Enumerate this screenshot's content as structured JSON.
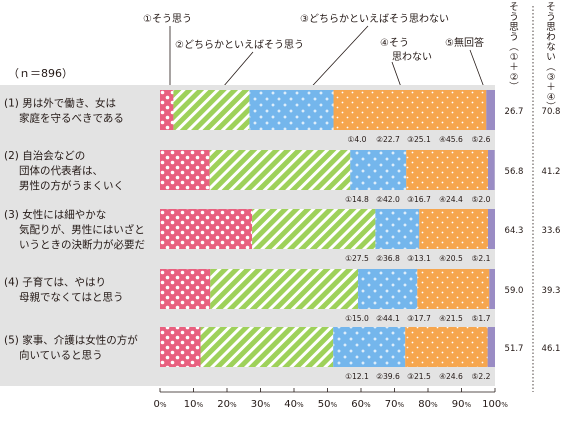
{
  "chart_data": {
    "type": "bar",
    "orientation": "horizontal",
    "stacked": true,
    "sample": "（ｎ＝896）",
    "categories": [
      "(1) 男は外で働き、女は家庭を守るべきである",
      "(2) 自治会などの団体の代表者は、男性の方がうまくいく",
      "(3) 女性には細やかな気配りが、男性にはいざというときの決断力が必要だ",
      "(4) 子育ては、やはり母親でなくてはと思う",
      "(5) 家事、介護は女性の方が向いていると思う"
    ],
    "category_lines": [
      [
        "(1) 男は外で働き、女は",
        "家庭を守るべきである"
      ],
      [
        "(2) 自治会などの",
        "団体の代表者は、",
        "男性の方がうまくいく"
      ],
      [
        "(3) 女性には細やかな",
        "気配りが、男性にはいざと",
        "いうときの決断力が必要だ"
      ],
      [
        "(4) 子育ては、やはり",
        "母親でなくてはと思う"
      ],
      [
        "(5) 家事、介護は女性の方が",
        "向いていると思う"
      ]
    ],
    "series": [
      {
        "name": "①そう思う",
        "values": [
          4.0,
          14.8,
          27.5,
          15.0,
          12.1
        ]
      },
      {
        "name": "②どちらかといえばそう思う",
        "values": [
          22.7,
          42.0,
          36.8,
          44.1,
          39.6
        ]
      },
      {
        "name": "③どちらかといえばそう思わない",
        "values": [
          25.1,
          16.7,
          13.1,
          17.7,
          21.5
        ]
      },
      {
        "name": "④そう思わない",
        "values": [
          45.6,
          24.4,
          20.5,
          21.5,
          24.6
        ]
      },
      {
        "name": "⑤無回答",
        "values": [
          2.6,
          2.0,
          2.1,
          1.7,
          2.2
        ]
      }
    ],
    "value_labels": [
      [
        "①4.0",
        "②22.7",
        "③25.1",
        "④45.6",
        "⑤2.6"
      ],
      [
        "①14.8",
        "②42.0",
        "③16.7",
        "④24.4",
        "⑤2.0"
      ],
      [
        "①27.5",
        "②36.8",
        "③13.1",
        "④20.5",
        "⑤2.1"
      ],
      [
        "①15.0",
        "②44.1",
        "③17.7",
        "④21.5",
        "⑤1.7"
      ],
      [
        "①12.1",
        "②39.6",
        "③21.5",
        "④24.6",
        "⑤2.2"
      ]
    ],
    "totals": {
      "agree_header": "そう思う（①＋②）",
      "agree": [
        "26.7",
        "56.8",
        "64.3",
        "59.0",
        "51.7"
      ],
      "disagree_header": "そう思わない（③＋④）",
      "disagree": [
        "70.8",
        "41.2",
        "33.6",
        "39.3",
        "46.1"
      ]
    },
    "xlim": [
      0,
      100
    ],
    "xticks": [
      "0%",
      "10%",
      "20%",
      "30%",
      "40%",
      "50%",
      "60%",
      "70%",
      "80%",
      "90%",
      "100%"
    ],
    "legend_callouts": [
      "①そう思う",
      "②どちらかといえばそう思う",
      "③どちらかといえばそう思わない",
      "④そう思わない",
      "⑤無回答"
    ],
    "colors": {
      "s1": "#e8607f",
      "s2": "#9ed15a",
      "s3": "#74b6ec",
      "s4": "#f6a64e",
      "s5": "#9a8cc4",
      "band": "#e3e3e3",
      "text": "#231815"
    }
  }
}
